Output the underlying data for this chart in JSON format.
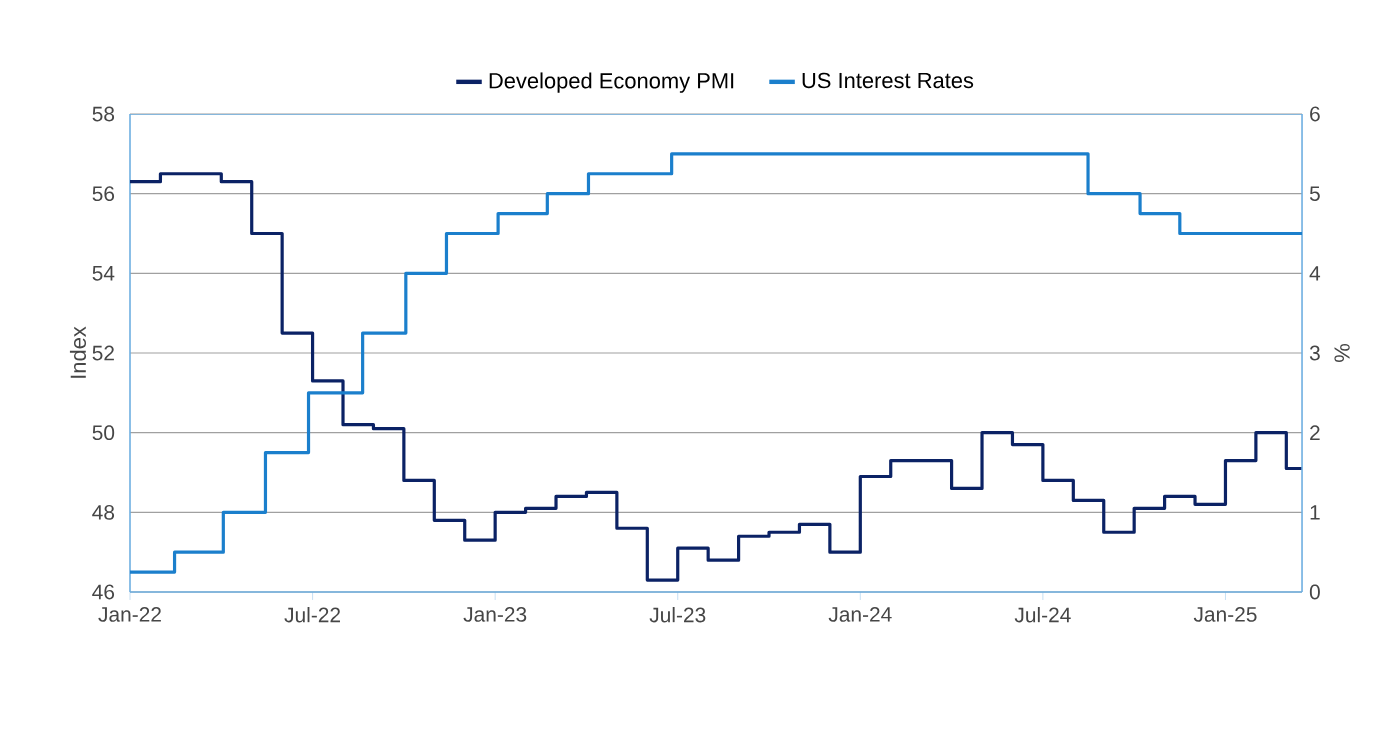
{
  "chart_data": {
    "type": "step",
    "ylabel": "Index",
    "y2label": "%",
    "x": [
      "2022-01",
      "2022-02",
      "2022-03",
      "2022-04",
      "2022-05",
      "2022-06",
      "2022-07",
      "2022-08",
      "2022-09",
      "2022-10",
      "2022-11",
      "2022-12",
      "2023-01",
      "2023-02",
      "2023-03",
      "2023-04",
      "2023-05",
      "2023-06",
      "2023-07",
      "2023-08",
      "2023-09",
      "2023-10",
      "2023-11",
      "2023-12",
      "2024-01",
      "2024-02",
      "2024-03",
      "2024-04",
      "2024-05",
      "2024-06",
      "2024-07",
      "2024-08",
      "2024-09",
      "2024-10",
      "2024-11",
      "2024-12",
      "2025-01",
      "2025-02",
      "2025-03",
      "2025-03-17"
    ],
    "series": [
      {
        "name": "Developed Economy PMI",
        "color": "#0b2265",
        "values": [
          56.3,
          56.5,
          56.5,
          56.3,
          55.0,
          52.5,
          51.3,
          50.2,
          50.1,
          48.8,
          47.8,
          47.3,
          48.0,
          48.1,
          48.4,
          48.5,
          47.6,
          46.3,
          47.1,
          46.8,
          47.4,
          47.5,
          47.7,
          47.0,
          48.9,
          49.3,
          49.3,
          48.6,
          50.0,
          49.7,
          48.8,
          48.3,
          47.5,
          48.1,
          48.4,
          48.2,
          49.3,
          50.0,
          49.1,
          49.1
        ]
      },
      {
        "name": "US Interest Rates",
        "color": "#1b7fcc",
        "axis": "y2",
        "x": [
          "2022-01-01",
          "2022-02-14",
          "2022-04-03",
          "2022-05-15",
          "2022-06-27",
          "2022-08-21",
          "2022-10-03",
          "2022-11-13",
          "2023-01-04",
          "2023-02-21",
          "2023-04-03",
          "2023-06-25",
          "2024-08-16",
          "2024-10-07",
          "2024-11-16",
          "2025-03-17"
        ],
        "values": [
          0.25,
          0.5,
          1.0,
          1.75,
          2.5,
          3.25,
          4.0,
          4.5,
          4.75,
          5.0,
          5.25,
          5.5,
          5.0,
          4.75,
          4.5,
          4.5
        ]
      }
    ],
    "xlim": [
      "2022-01-01",
      "2025-03-17"
    ],
    "xticks": [
      {
        "value": "2022-01-01",
        "label": "Jan-22"
      },
      {
        "value": "2022-07-01",
        "label": "Jul-22"
      },
      {
        "value": "2023-01-01",
        "label": "Jan-23"
      },
      {
        "value": "2023-07-01",
        "label": "Jul-23"
      },
      {
        "value": "2024-01-01",
        "label": "Jan-24"
      },
      {
        "value": "2024-07-01",
        "label": "Jul-24"
      },
      {
        "value": "2025-01-01",
        "label": "Jan-25"
      }
    ],
    "ylim": [
      46,
      58
    ],
    "yticks": [
      46,
      48,
      50,
      52,
      54,
      56,
      58
    ],
    "y2lim": [
      0,
      6
    ],
    "y2ticks": [
      0,
      1,
      2,
      3,
      4,
      5,
      6
    ],
    "grid": "y",
    "legend": "top",
    "marker": "none",
    "line_style": "solid"
  }
}
